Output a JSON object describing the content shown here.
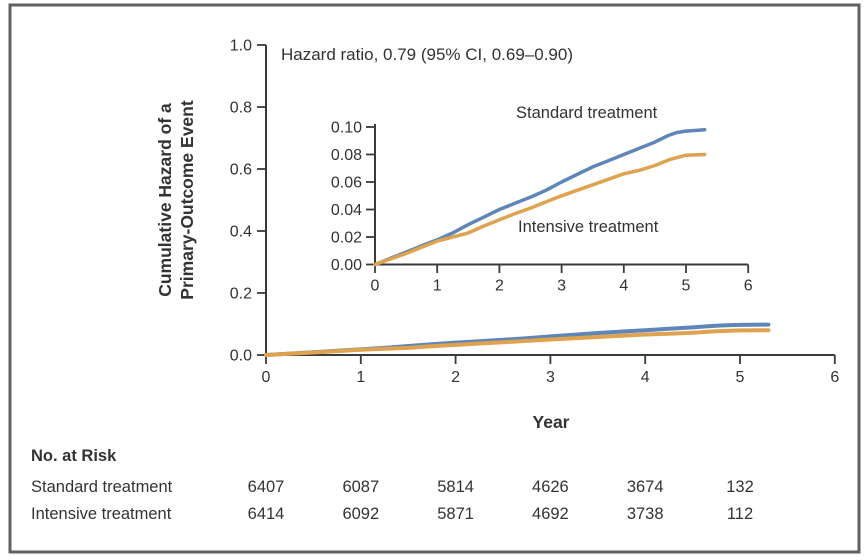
{
  "colors": {
    "standard": "#5e86b8",
    "intensive": "#dfa24e",
    "axis": "#3a3a3a",
    "text": "#333333",
    "frame": "#606060"
  },
  "figure": {
    "annotation": "Hazard ratio, 0.79 (95% CI, 0.69–0.90)",
    "y_axis_title_line1": "Cumulative Hazard of a",
    "y_axis_title_line2": "Primary-Outcome Event",
    "x_axis_title": "Year"
  },
  "chart_data": {
    "type": "line",
    "title": "",
    "xlabel": "Year",
    "ylabel": "Cumulative Hazard of a Primary-Outcome Event",
    "annotation": "Hazard ratio, 0.79 (95% CI, 0.69–0.90)",
    "legend_position": "inline-labels",
    "grid": false,
    "main_axis": {
      "xlim": [
        0,
        6
      ],
      "ylim": [
        0.0,
        1.0
      ],
      "xticks": [
        "0",
        "1",
        "2",
        "3",
        "4",
        "5",
        "6"
      ],
      "yticks": [
        "0.0",
        "0.2",
        "0.4",
        "0.6",
        "0.8",
        "1.0"
      ]
    },
    "inset_axis": {
      "xlim": [
        0,
        6
      ],
      "ylim": [
        0.0,
        0.1
      ],
      "xticks": [
        "0",
        "1",
        "2",
        "3",
        "4",
        "5",
        "6"
      ],
      "yticks": [
        "0.00",
        "0.02",
        "0.04",
        "0.06",
        "0.08",
        "0.10"
      ]
    },
    "series": [
      {
        "name": "Standard treatment",
        "color_key": "standard",
        "x": [
          0,
          0.25,
          0.5,
          0.75,
          1,
          1.25,
          1.5,
          1.75,
          2,
          2.25,
          2.5,
          2.75,
          3,
          3.25,
          3.5,
          3.75,
          4,
          4.25,
          4.5,
          4.7,
          4.85,
          5,
          5.3
        ],
        "y": [
          0,
          0.0045,
          0.009,
          0.0135,
          0.018,
          0.023,
          0.029,
          0.0345,
          0.04,
          0.0445,
          0.049,
          0.054,
          0.06,
          0.0655,
          0.071,
          0.0755,
          0.08,
          0.0845,
          0.089,
          0.0935,
          0.096,
          0.097,
          0.098
        ]
      },
      {
        "name": "Intensive treatment",
        "color_key": "intensive",
        "x": [
          0,
          0.25,
          0.5,
          0.75,
          1,
          1.25,
          1.5,
          1.75,
          2,
          2.25,
          2.5,
          2.75,
          3,
          3.25,
          3.5,
          3.75,
          4,
          4.25,
          4.5,
          4.75,
          5,
          5.3
        ],
        "y": [
          0,
          0.004,
          0.008,
          0.0125,
          0.017,
          0.02,
          0.023,
          0.028,
          0.0325,
          0.037,
          0.041,
          0.0455,
          0.05,
          0.054,
          0.058,
          0.062,
          0.066,
          0.0685,
          0.072,
          0.0765,
          0.0795,
          0.08
        ]
      }
    ]
  },
  "no_at_risk": {
    "title": "No. at Risk",
    "years": [
      0,
      1,
      2,
      3,
      4,
      5
    ],
    "rows": [
      {
        "label": "Standard treatment",
        "values": [
          "6407",
          "6087",
          "5814",
          "4626",
          "3674",
          "132"
        ]
      },
      {
        "label": "Intensive treatment",
        "values": [
          "6414",
          "6092",
          "5871",
          "4692",
          "3738",
          "112"
        ]
      }
    ]
  }
}
